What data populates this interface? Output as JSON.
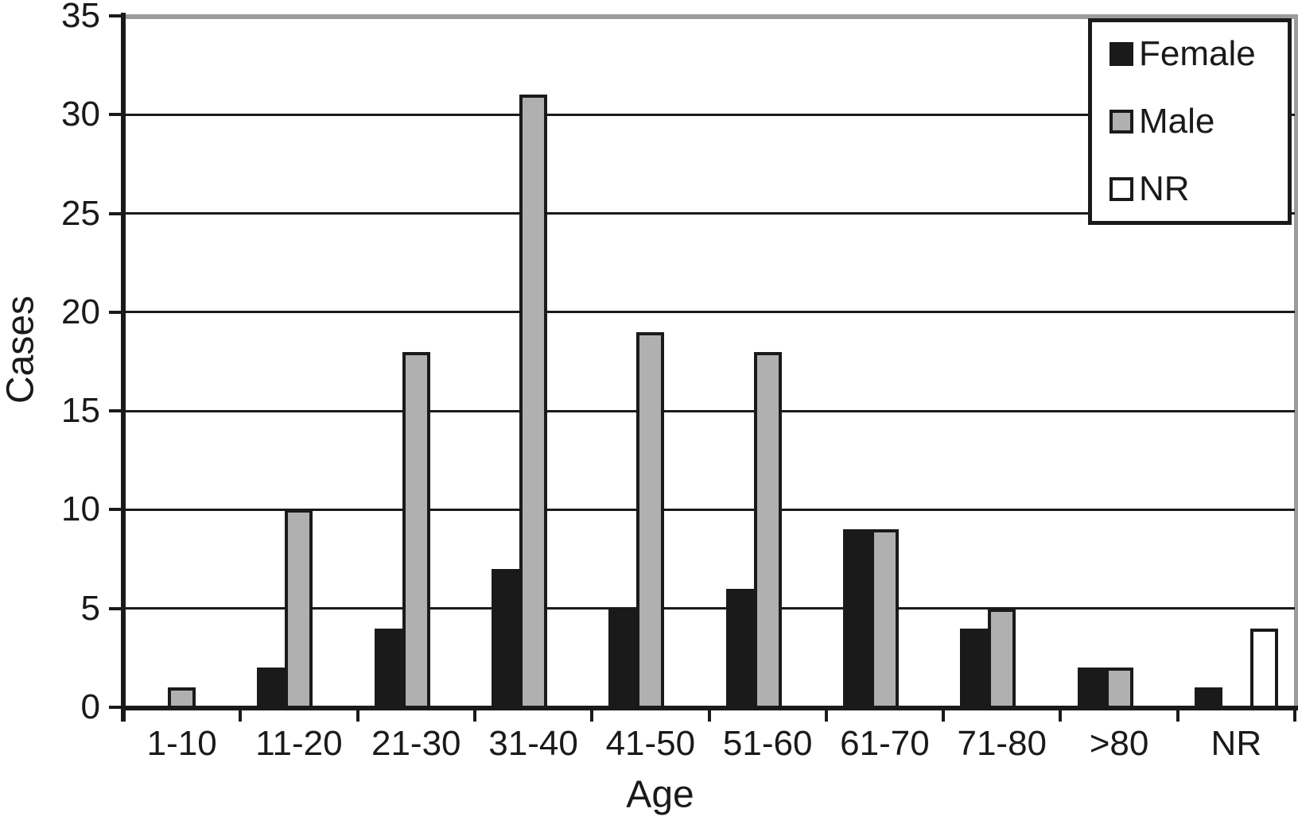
{
  "chart_data": {
    "type": "bar",
    "title": "",
    "xlabel": "Age",
    "ylabel": "Cases",
    "categories": [
      "1-10",
      "11-20",
      "21-30",
      "31-40",
      "41-50",
      "51-60",
      "61-70",
      "71-80",
      ">80",
      "NR"
    ],
    "series": [
      {
        "name": "Female",
        "color": "#1a1a1a",
        "values": [
          0,
          2,
          4,
          7,
          5,
          6,
          9,
          4,
          2,
          1
        ]
      },
      {
        "name": "Male",
        "color": "#b0b0b0",
        "values": [
          1,
          10,
          18,
          31,
          19,
          18,
          9,
          5,
          2,
          0
        ]
      },
      {
        "name": "NR",
        "color": "#ffffff",
        "values": [
          0,
          0,
          0,
          0,
          0,
          0,
          0,
          0,
          0,
          4
        ]
      }
    ],
    "ylim": [
      0,
      35
    ],
    "ytick_interval": 5,
    "yticks": [
      0,
      5,
      10,
      15,
      20,
      25,
      30,
      35
    ],
    "grid": "horizontal",
    "legend_position": "top-right",
    "bar_outline_color": "#1a1a1a",
    "frame_color": "#9c9c9c",
    "axis_color": "#1a1a1a",
    "background_color": "#ffffff"
  }
}
